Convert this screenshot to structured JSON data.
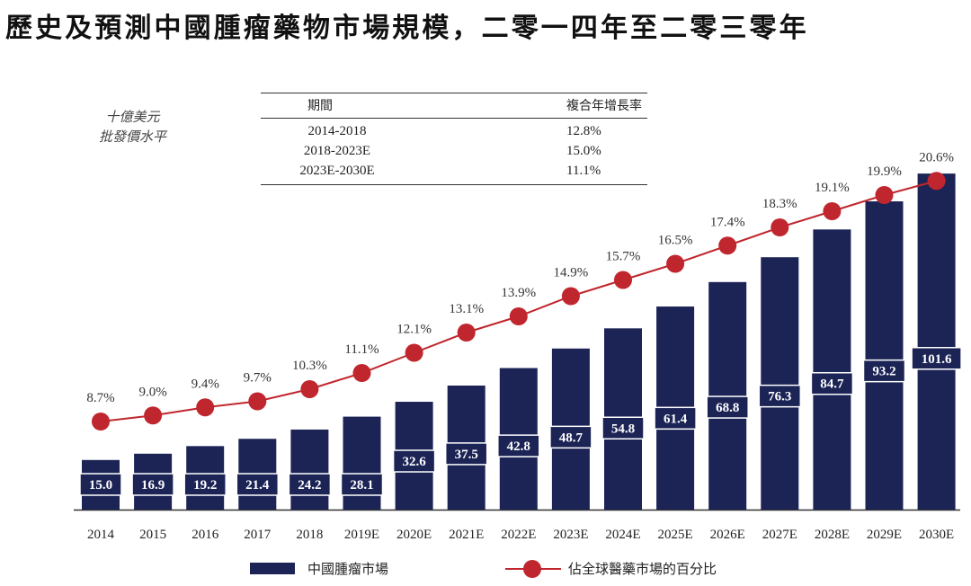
{
  "title": "歷史及預測中國腫瘤藥物市場規模，二零一四年至二零三零年",
  "unit_line1": "十億美元",
  "unit_line2": "批發價水平",
  "cagr_table": {
    "header_period": "期間",
    "header_cagr": "複合年增長率",
    "rows": [
      {
        "period": "2014-2018",
        "cagr": "12.8%"
      },
      {
        "period": "2018-2023E",
        "cagr": "15.0%"
      },
      {
        "period": "2023E-2030E",
        "cagr": "11.1%"
      }
    ]
  },
  "legend": {
    "bar": "中國腫瘤市場",
    "line": "佔全球醫藥市場的百分比"
  },
  "colors": {
    "bar": "#1c2456",
    "line": "#c0262d",
    "axis": "#333333"
  },
  "chart_data": {
    "type": "bar",
    "categories": [
      "2014",
      "2015",
      "2016",
      "2017",
      "2018",
      "2019E",
      "2020E",
      "2021E",
      "2022E",
      "2023E",
      "2024E",
      "2025E",
      "2026E",
      "2027E",
      "2028E",
      "2029E",
      "2030E"
    ],
    "series": [
      {
        "name": "中國腫瘤市場",
        "type": "bar",
        "values": [
          15.0,
          16.9,
          19.2,
          21.4,
          24.2,
          28.1,
          32.6,
          37.5,
          42.8,
          48.7,
          54.8,
          61.4,
          68.8,
          76.3,
          84.7,
          93.2,
          101.6
        ],
        "labels": [
          "15.0",
          "16.9",
          "19.2",
          "21.4",
          "24.2",
          "28.1",
          "32.6",
          "37.5",
          "42.8",
          "48.7",
          "54.8",
          "61.4",
          "68.8",
          "76.3",
          "84.7",
          "93.2",
          "101.6"
        ]
      },
      {
        "name": "佔全球醫藥市場的百分比",
        "type": "line",
        "values": [
          8.7,
          9.0,
          9.4,
          9.7,
          10.3,
          11.1,
          12.1,
          13.1,
          13.9,
          14.9,
          15.7,
          16.5,
          17.4,
          18.3,
          19.1,
          19.9,
          20.6
        ],
        "labels": [
          "8.7%",
          "9.0%",
          "9.4%",
          "9.7%",
          "10.3%",
          "11.1%",
          "12.1%",
          "13.1%",
          "13.9%",
          "14.9%",
          "15.7%",
          "16.5%",
          "17.4%",
          "18.3%",
          "19.1%",
          "19.9%",
          "20.6%"
        ]
      }
    ],
    "legend_position": "bottom",
    "grid": false
  }
}
